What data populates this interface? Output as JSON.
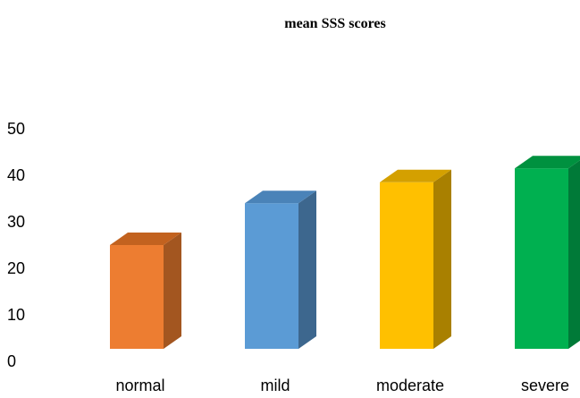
{
  "chart_data": {
    "type": "bar",
    "title": "mean SSS scores",
    "categories": [
      "normal",
      "mild",
      "moderate",
      "severe"
    ],
    "values": [
      25,
      34,
      38.5,
      41.5
    ],
    "colors": {
      "front": [
        "#ED7D31",
        "#5B9BD5",
        "#FFC000",
        "#00B050"
      ],
      "side": [
        "#A35620",
        "#3D678E",
        "#A98000",
        "#007A38"
      ],
      "top": [
        "#C2621F",
        "#4A83B8",
        "#D4A000",
        "#00913F"
      ]
    },
    "ylim": [
      0,
      50
    ],
    "yticks": [
      0,
      10,
      20,
      30,
      40,
      50
    ],
    "xlabel": "",
    "ylabel": "",
    "grid": false,
    "legend": false,
    "style": "3d-column"
  }
}
